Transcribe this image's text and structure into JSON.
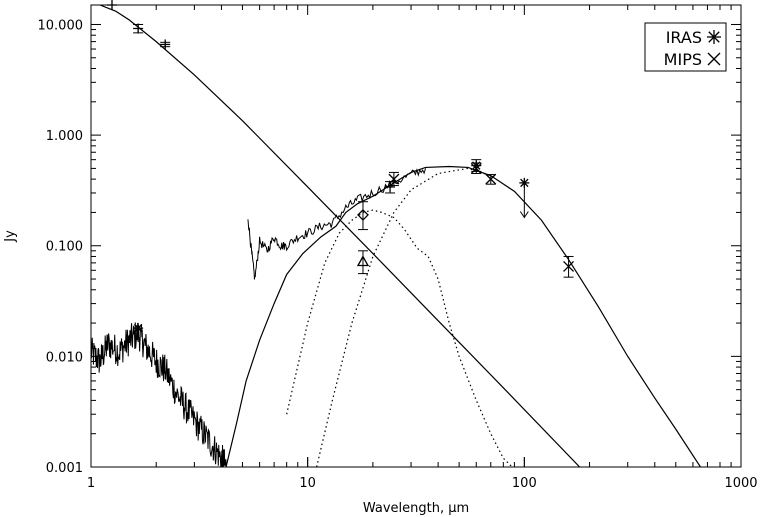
{
  "chart_data": {
    "type": "scatter",
    "title": "",
    "xlabel": "Wavelength, μm",
    "ylabel": "Jy",
    "xscale": "log",
    "yscale": "log",
    "xlim": [
      1,
      1000
    ],
    "ylim": [
      0.001,
      15
    ],
    "x_tick_labels": [
      "1",
      "10",
      "100",
      "1000"
    ],
    "y_tick_labels": [
      "0.001",
      "0.010",
      "0.100",
      "1.000",
      "10.000"
    ],
    "grid": false,
    "legend": {
      "placement": "top-right",
      "entries": [
        {
          "label": "IRAS",
          "marker": "asterisk"
        },
        {
          "label": "MIPS",
          "marker": "x"
        }
      ]
    },
    "lines": [
      {
        "style": "solid",
        "points": [
          [
            1.1,
            15
          ],
          [
            1.3,
            13.2
          ],
          [
            1.5,
            11.0
          ],
          [
            2.0,
            7.0
          ],
          [
            3.0,
            3.5
          ],
          [
            5.0,
            1.35
          ],
          [
            10.0,
            0.34
          ],
          [
            20.0,
            0.085
          ],
          [
            40.0,
            0.021
          ],
          [
            80.0,
            0.0052
          ],
          [
            180.0,
            0.001
          ]
        ]
      },
      {
        "style": "solid",
        "points": [
          [
            4.2,
            0.001
          ],
          [
            4.7,
            0.0025
          ],
          [
            5.2,
            0.006
          ],
          [
            6.0,
            0.014
          ],
          [
            7.0,
            0.03
          ],
          [
            8.0,
            0.055
          ],
          [
            9.5,
            0.085
          ],
          [
            11.5,
            0.12
          ],
          [
            13.5,
            0.15
          ],
          [
            15.0,
            0.2
          ],
          [
            17.0,
            0.24
          ],
          [
            20.0,
            0.28
          ],
          [
            25.0,
            0.37
          ],
          [
            30.0,
            0.46
          ],
          [
            35.0,
            0.51
          ],
          [
            45.0,
            0.52
          ],
          [
            55.0,
            0.51
          ],
          [
            70.0,
            0.43
          ],
          [
            90.0,
            0.31
          ],
          [
            120.0,
            0.17
          ],
          [
            160.0,
            0.075
          ],
          [
            220.0,
            0.028
          ],
          [
            300.0,
            0.01
          ],
          [
            400.0,
            0.0042
          ],
          [
            500.0,
            0.0022
          ],
          [
            650.0,
            0.001
          ]
        ]
      },
      {
        "style": "dotted",
        "points": [
          [
            8.0,
            0.003
          ],
          [
            10.0,
            0.02
          ],
          [
            12.0,
            0.07
          ],
          [
            14.0,
            0.13
          ],
          [
            16.0,
            0.17
          ],
          [
            18.0,
            0.2
          ],
          [
            20.0,
            0.21
          ],
          [
            22.0,
            0.2
          ],
          [
            25.0,
            0.18
          ],
          [
            28.0,
            0.14
          ],
          [
            32.0,
            0.095
          ],
          [
            36.0,
            0.08
          ],
          [
            40.0,
            0.05
          ],
          [
            45.0,
            0.02
          ],
          [
            50.0,
            0.01
          ],
          [
            60.0,
            0.004
          ],
          [
            70.0,
            0.002
          ],
          [
            80.0,
            0.0012
          ],
          [
            88.0,
            0.001
          ]
        ]
      },
      {
        "style": "dotted",
        "points": [
          [
            11.0,
            0.001
          ],
          [
            13.0,
            0.004
          ],
          [
            16.0,
            0.02
          ],
          [
            20.0,
            0.08
          ],
          [
            25.0,
            0.2
          ],
          [
            30.0,
            0.32
          ],
          [
            40.0,
            0.45
          ],
          [
            55.0,
            0.5
          ],
          [
            70.0,
            0.43
          ]
        ]
      }
    ],
    "spectra": [
      {
        "label": "stellar-spectrum",
        "points": [
          [
            1.0,
            0.011
          ],
          [
            1.1,
            0.009
          ],
          [
            1.2,
            0.013
          ],
          [
            1.35,
            0.011
          ],
          [
            1.5,
            0.014
          ],
          [
            1.65,
            0.016
          ],
          [
            1.8,
            0.012
          ],
          [
            2.0,
            0.009
          ],
          [
            2.2,
            0.0075
          ],
          [
            2.5,
            0.0045
          ],
          [
            2.8,
            0.0032
          ],
          [
            3.2,
            0.0022
          ],
          [
            3.6,
            0.0016
          ],
          [
            4.0,
            0.0012
          ],
          [
            4.2,
            0.001
          ]
        ]
      },
      {
        "label": "irs-spectrum",
        "points": [
          [
            5.3,
            0.18
          ],
          [
            5.5,
            0.09
          ],
          [
            5.7,
            0.05
          ],
          [
            6.0,
            0.11
          ],
          [
            6.5,
            0.09
          ],
          [
            7.0,
            0.12
          ],
          [
            7.5,
            0.1
          ],
          [
            8.0,
            0.1
          ],
          [
            9.0,
            0.12
          ],
          [
            10.0,
            0.13
          ],
          [
            11.5,
            0.15
          ],
          [
            13.0,
            0.16
          ],
          [
            15.0,
            0.22
          ],
          [
            17.0,
            0.26
          ],
          [
            20.0,
            0.3
          ],
          [
            25.0,
            0.37
          ],
          [
            30.0,
            0.44
          ],
          [
            35.0,
            0.5
          ]
        ]
      }
    ],
    "points": [
      {
        "x": 1.25,
        "y": 15.0,
        "marker": "plus",
        "err": [
          15.0,
          15.0
        ]
      },
      {
        "x": 1.65,
        "y": 9.2,
        "marker": "plus",
        "err": [
          8.4,
          10.0
        ]
      },
      {
        "x": 2.2,
        "y": 6.6,
        "marker": "plus",
        "err": [
          6.3,
          6.9
        ]
      },
      {
        "x": 1.65,
        "y": 0.018,
        "marker": "asterisk",
        "err": [
          0.018,
          0.018
        ]
      },
      {
        "x": 18.0,
        "y": 0.19,
        "marker": "diamond",
        "err": [
          0.14,
          0.25
        ]
      },
      {
        "x": 18.0,
        "y": 0.072,
        "marker": "triangle",
        "err": [
          0.056,
          0.09
        ]
      },
      {
        "x": 24.0,
        "y": 0.34,
        "marker": "plus",
        "err": [
          0.3,
          0.38
        ]
      },
      {
        "x": 25.0,
        "y": 0.4,
        "marker": "x",
        "err": [
          0.35,
          0.46
        ]
      },
      {
        "x": 60.0,
        "y": 0.53,
        "marker": "asterisk",
        "err": [
          0.47,
          0.6
        ]
      },
      {
        "x": 60.0,
        "y": 0.5,
        "marker": "x",
        "err": [
          0.45,
          0.56
        ]
      },
      {
        "x": 70.0,
        "y": 0.4,
        "marker": "x",
        "err": [
          0.36,
          0.44
        ]
      },
      {
        "x": 100.0,
        "y": 0.37,
        "marker": "asterisk",
        "upper_limit_to": 0.18
      },
      {
        "x": 160.0,
        "y": 0.065,
        "marker": "x",
        "err": [
          0.052,
          0.08
        ]
      }
    ]
  }
}
